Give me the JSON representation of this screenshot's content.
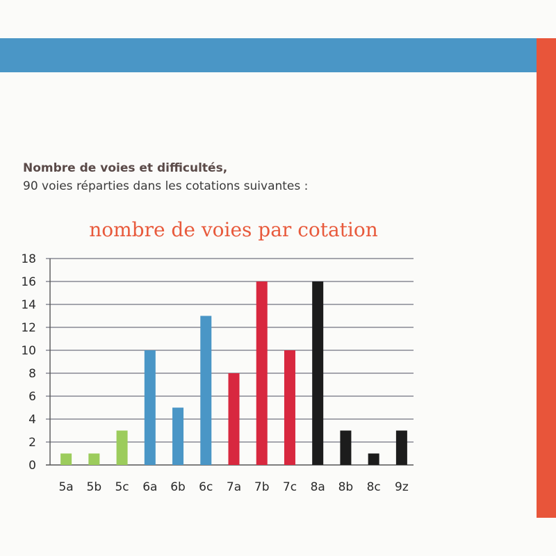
{
  "intro": {
    "heading": "Nombre de voies et difficultés,",
    "text": "90 voies réparties dans les cotations suivantes :"
  },
  "chart_data": {
    "type": "bar",
    "title": "nombre de voies par cotation",
    "xlabel": "",
    "ylabel": "",
    "ylim": [
      0,
      18
    ],
    "yticks": [
      0,
      2,
      4,
      6,
      8,
      10,
      12,
      14,
      16,
      18
    ],
    "grid": true,
    "categories": [
      "5a",
      "5b",
      "5c",
      "6a",
      "6b",
      "6c",
      "7a",
      "7b",
      "7c",
      "8a",
      "8b",
      "8c",
      "9z"
    ],
    "values": [
      1,
      1,
      3,
      10,
      5,
      13,
      8,
      16,
      10,
      16,
      3,
      1,
      3
    ],
    "colors": [
      "#9ccc5c",
      "#9ccc5c",
      "#9ccc5c",
      "#4a96c6",
      "#4a96c6",
      "#4a96c6",
      "#d8283f",
      "#d8283f",
      "#d8283f",
      "#1c1c1c",
      "#1c1c1c",
      "#1c1c1c",
      "#1c1c1c"
    ]
  }
}
